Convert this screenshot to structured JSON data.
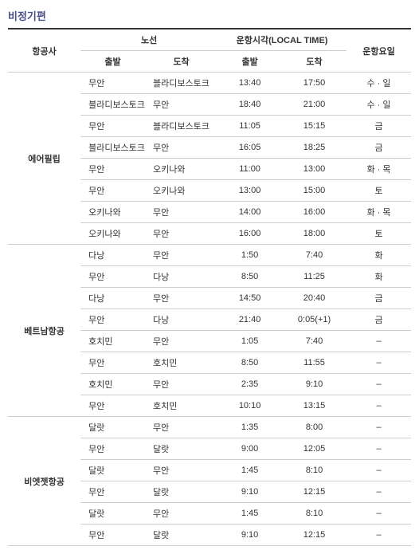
{
  "title": "비정기편",
  "headers": {
    "airline": "항공사",
    "route": "노선",
    "schedule": "운항시각(LOCAL TIME)",
    "days": "운항요일",
    "dep": "출발",
    "arr": "도착"
  },
  "groups": [
    {
      "airline": "에어필립",
      "rows": [
        {
          "dep_route": "무안",
          "arr_route": "블라디보스토크",
          "dep_time": "13:40",
          "arr_time": "17:50",
          "days": "수 · 일"
        },
        {
          "dep_route": "블라디보스토크",
          "arr_route": "무안",
          "dep_time": "18:40",
          "arr_time": "21:00",
          "days": "수 · 일"
        },
        {
          "dep_route": "무안",
          "arr_route": "블라디보스토크",
          "dep_time": "11:05",
          "arr_time": "15:15",
          "days": "금"
        },
        {
          "dep_route": "블라디보스토크",
          "arr_route": "무안",
          "dep_time": "16:05",
          "arr_time": "18:25",
          "days": "금"
        },
        {
          "dep_route": "무안",
          "arr_route": "오키나와",
          "dep_time": "11:00",
          "arr_time": "13:00",
          "days": "화 · 목"
        },
        {
          "dep_route": "무안",
          "arr_route": "오키나와",
          "dep_time": "13:00",
          "arr_time": "15:00",
          "days": "토"
        },
        {
          "dep_route": "오키나와",
          "arr_route": "무안",
          "dep_time": "14:00",
          "arr_time": "16:00",
          "days": "화 · 목"
        },
        {
          "dep_route": "오키나와",
          "arr_route": "무안",
          "dep_time": "16:00",
          "arr_time": "18:00",
          "days": "토"
        }
      ]
    },
    {
      "airline": "베트남항공",
      "rows": [
        {
          "dep_route": "다낭",
          "arr_route": "무안",
          "dep_time": "1:50",
          "arr_time": "7:40",
          "days": "화"
        },
        {
          "dep_route": "무안",
          "arr_route": "다낭",
          "dep_time": "8:50",
          "arr_time": "11:25",
          "days": "화"
        },
        {
          "dep_route": "다낭",
          "arr_route": "무안",
          "dep_time": "14:50",
          "arr_time": "20:40",
          "days": "금"
        },
        {
          "dep_route": "무안",
          "arr_route": "다낭",
          "dep_time": "21:40",
          "arr_time": "0:05(+1)",
          "days": "금"
        },
        {
          "dep_route": "호치민",
          "arr_route": "무안",
          "dep_time": "1:05",
          "arr_time": "7:40",
          "days": "–"
        },
        {
          "dep_route": "무안",
          "arr_route": "호치민",
          "dep_time": "8:50",
          "arr_time": "11:55",
          "days": "–"
        },
        {
          "dep_route": "호치민",
          "arr_route": "무안",
          "dep_time": "2:35",
          "arr_time": "9:10",
          "days": "–"
        },
        {
          "dep_route": "무안",
          "arr_route": "호치민",
          "dep_time": "10:10",
          "arr_time": "13:15",
          "days": "–"
        }
      ]
    },
    {
      "airline": "비엣젯항공",
      "rows": [
        {
          "dep_route": "달랏",
          "arr_route": "무안",
          "dep_time": "1:35",
          "arr_time": "8:00",
          "days": "–"
        },
        {
          "dep_route": "무안",
          "arr_route": "달랏",
          "dep_time": "9:00",
          "arr_time": "12:05",
          "days": "–"
        },
        {
          "dep_route": "달랏",
          "arr_route": "무안",
          "dep_time": "1:45",
          "arr_time": "8:10",
          "days": "–"
        },
        {
          "dep_route": "무안",
          "arr_route": "달랏",
          "dep_time": "9:10",
          "arr_time": "12:15",
          "days": "–"
        },
        {
          "dep_route": "달랏",
          "arr_route": "무안",
          "dep_time": "1:45",
          "arr_time": "8:10",
          "days": "–"
        },
        {
          "dep_route": "무안",
          "arr_route": "달랏",
          "dep_time": "9:10",
          "arr_time": "12:15",
          "days": "–"
        }
      ]
    }
  ]
}
